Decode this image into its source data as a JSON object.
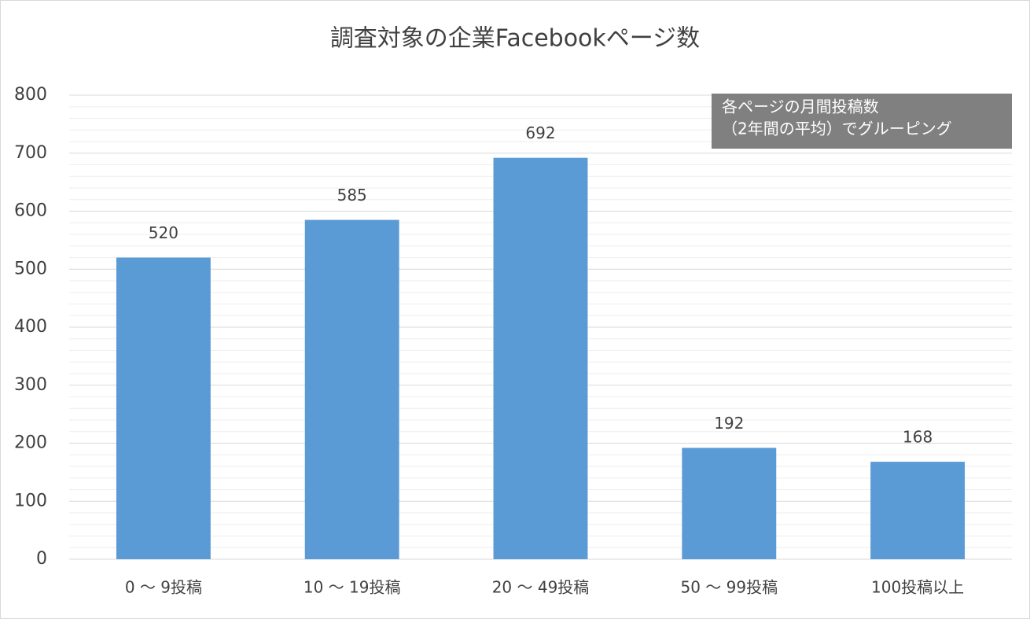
{
  "chart_data": {
    "type": "bar",
    "title": "調査対象の企業Facebookページ数",
    "categories": [
      "0 ～ 9投稿",
      "10 ～ 19投稿",
      "20 ～ 49投稿",
      "50 ～ 99投稿",
      "100投稿以上"
    ],
    "values": [
      520,
      585,
      692,
      192,
      168
    ],
    "color": "#5b9bd5",
    "ylim": [
      0,
      800
    ],
    "yticks": [
      0,
      100,
      200,
      300,
      400,
      500,
      600,
      700,
      800
    ],
    "minor_yticks": [
      20,
      40,
      60,
      80,
      120,
      140,
      160,
      180,
      220,
      240,
      260,
      280,
      320,
      340,
      360,
      380,
      420,
      440,
      460,
      480,
      520,
      540,
      560,
      580,
      620,
      640,
      660,
      680,
      720,
      740,
      760,
      780
    ],
    "grid": true,
    "annotation": [
      "各ページの月間投稿数",
      "（2年間の平均）でグルーピング"
    ]
  }
}
